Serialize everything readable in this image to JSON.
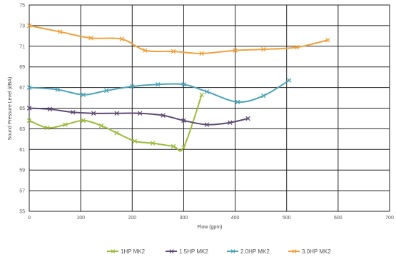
{
  "chart_data": {
    "type": "line",
    "xlabel": "Flow (gpm)",
    "ylabel": "Sound Pressure Level (dBA)",
    "xlim": [
      0,
      700
    ],
    "ylim": [
      55,
      75
    ],
    "x_ticks": [
      "0",
      "100",
      "200",
      "300",
      "400",
      "500",
      "600",
      "700"
    ],
    "y_ticks": [
      "55",
      "57",
      "59",
      "61",
      "63",
      "65",
      "67",
      "69",
      "71",
      "73",
      "75"
    ],
    "grid": true,
    "legend_position": "bottom",
    "series": [
      {
        "name": "1HP MK2",
        "color": "#9bbb3b",
        "x": [
          0,
          35,
          70,
          105,
          140,
          170,
          205,
          240,
          280,
          300,
          335
        ],
        "y": [
          63.8,
          63.1,
          63.4,
          63.8,
          63.3,
          62.6,
          61.8,
          61.6,
          61.3,
          61.2,
          66.3
        ]
      },
      {
        "name": "1.5HP MK2",
        "color": "#5e4a73",
        "x": [
          0,
          40,
          85,
          125,
          170,
          215,
          260,
          300,
          345,
          390,
          425
        ],
        "y": [
          65.0,
          64.9,
          64.6,
          64.5,
          64.5,
          64.5,
          64.3,
          63.8,
          63.4,
          63.6,
          64.0
        ]
      },
      {
        "name": "2.0HP MK2",
        "color": "#4aa3b8",
        "x": [
          0,
          55,
          105,
          150,
          200,
          250,
          300,
          345,
          405,
          455,
          505
        ],
        "y": [
          67.0,
          66.8,
          66.3,
          66.7,
          67.1,
          67.3,
          67.3,
          66.6,
          65.6,
          66.2,
          67.7
        ]
      },
      {
        "name": "3.0HP MK2",
        "color": "#f0a13c",
        "x": [
          0,
          60,
          120,
          180,
          225,
          280,
          335,
          400,
          455,
          520,
          580
        ],
        "y": [
          73.0,
          72.4,
          71.8,
          71.7,
          70.6,
          70.5,
          70.3,
          70.6,
          70.7,
          70.9,
          71.6
        ]
      }
    ]
  }
}
